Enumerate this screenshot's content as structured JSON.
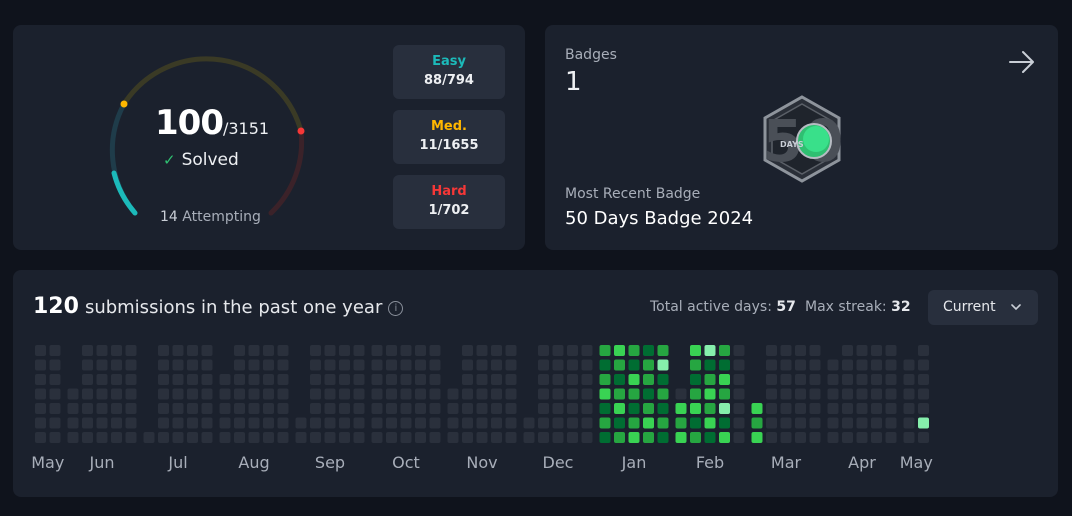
{
  "progress": {
    "solved_count": "100",
    "total_count": "/3151",
    "solved_label": "Solved",
    "attempting_count": "14",
    "attempting_label": "Attempting",
    "easy": {
      "label": "Easy",
      "value": "88/794",
      "color": "#1cbaba"
    },
    "medium": {
      "label": "Med.",
      "value": "11/1655",
      "color": "#ffb700"
    },
    "hard": {
      "label": "Hard",
      "value": "1/702",
      "color": "#f63737"
    }
  },
  "badges": {
    "title": "Badges",
    "count": "1",
    "badge_days_text": "DAYS",
    "badge_number": "50",
    "recent_label": "Most Recent Badge",
    "recent_name": "50 Days Badge 2024"
  },
  "heatmap": {
    "count": "120",
    "title_text": "submissions in the past one year",
    "info_icon": "info-icon",
    "active_days_label": "Total active days:",
    "active_days_value": "57",
    "max_streak_label": "Max streak:",
    "max_streak_value": "32",
    "dropdown_value": "Current",
    "colors": {
      "empty": "#2a303c",
      "level1": "#006d32",
      "level2": "#26a641",
      "level3": "#39d353",
      "level4": "#86efac"
    },
    "months": [
      {
        "label": "May",
        "weeks": [
          [
            0,
            0,
            0,
            0,
            0,
            0,
            0
          ],
          [
            0,
            0,
            0,
            0,
            0,
            0,
            0
          ]
        ],
        "cut_start": 0
      },
      {
        "label": "Jun",
        "weeks": [
          [
            0,
            0,
            0,
            0,
            0,
            0,
            0
          ],
          [
            0,
            0,
            0,
            0,
            0,
            0,
            0
          ],
          [
            0,
            0,
            0,
            0,
            0,
            0,
            0
          ],
          [
            0,
            0,
            0,
            0,
            0,
            0,
            0
          ],
          [
            0,
            0,
            0,
            0,
            0,
            0,
            0
          ]
        ],
        "cut_start": 3
      },
      {
        "label": "Jul",
        "weeks": [
          [
            0,
            0,
            0,
            0,
            0,
            0,
            0
          ],
          [
            0,
            0,
            0,
            0,
            0,
            0,
            0
          ],
          [
            0,
            0,
            0,
            0,
            0,
            0,
            0
          ],
          [
            0,
            0,
            0,
            0,
            0,
            0,
            0
          ],
          [
            0,
            0,
            0,
            0,
            0,
            0,
            0
          ]
        ],
        "cut_start": 6
      },
      {
        "label": "Aug",
        "weeks": [
          [
            0,
            0,
            0,
            0,
            0,
            0,
            0
          ],
          [
            0,
            0,
            0,
            0,
            0,
            0,
            0
          ],
          [
            0,
            0,
            0,
            0,
            0,
            0,
            0
          ],
          [
            0,
            0,
            0,
            0,
            0,
            0,
            0
          ],
          [
            0,
            0,
            0,
            0,
            0,
            0,
            0
          ]
        ],
        "cut_start": 2
      },
      {
        "label": "Sep",
        "weeks": [
          [
            0,
            0,
            0,
            0,
            0,
            0,
            0
          ],
          [
            0,
            0,
            0,
            0,
            0,
            0,
            0
          ],
          [
            0,
            0,
            0,
            0,
            0,
            0,
            0
          ],
          [
            0,
            0,
            0,
            0,
            0,
            0,
            0
          ],
          [
            0,
            0,
            0,
            0,
            0,
            0,
            0
          ]
        ],
        "cut_start": 5
      },
      {
        "label": "Oct",
        "weeks": [
          [
            0,
            0,
            0,
            0,
            0,
            0,
            0
          ],
          [
            0,
            0,
            0,
            0,
            0,
            0,
            0
          ],
          [
            0,
            0,
            0,
            0,
            0,
            0,
            0
          ],
          [
            0,
            0,
            0,
            0,
            0,
            0,
            0
          ],
          [
            0,
            0,
            0,
            0,
            0,
            0,
            0
          ]
        ],
        "cut_start": 0
      },
      {
        "label": "Nov",
        "weeks": [
          [
            0,
            0,
            0,
            0,
            0,
            0,
            0
          ],
          [
            0,
            0,
            0,
            0,
            0,
            0,
            0
          ],
          [
            0,
            0,
            0,
            0,
            0,
            0,
            0
          ],
          [
            0,
            0,
            0,
            0,
            0,
            0,
            0
          ],
          [
            0,
            0,
            0,
            0,
            0,
            0,
            0
          ]
        ],
        "cut_start": 3
      },
      {
        "label": "Dec",
        "weeks": [
          [
            0,
            0,
            0,
            0,
            0,
            0,
            0
          ],
          [
            0,
            0,
            0,
            0,
            0,
            0,
            0
          ],
          [
            0,
            0,
            0,
            0,
            0,
            0,
            0
          ],
          [
            0,
            0,
            0,
            0,
            0,
            0,
            0
          ],
          [
            0,
            0,
            0,
            0,
            0,
            0,
            0
          ]
        ],
        "cut_start": 5
      },
      {
        "label": "Jan",
        "weeks": [
          [
            2,
            1,
            2,
            3,
            1,
            2,
            1
          ],
          [
            3,
            2,
            1,
            2,
            3,
            1,
            2
          ],
          [
            2,
            1,
            3,
            2,
            1,
            2,
            3
          ],
          [
            1,
            2,
            2,
            1,
            2,
            3,
            2
          ],
          [
            2,
            4,
            1,
            2,
            1,
            2,
            1
          ]
        ],
        "cut_start": 0
      },
      {
        "label": "Feb",
        "weeks": [
          [
            0,
            0,
            0,
            0,
            3,
            2,
            3
          ],
          [
            3,
            2,
            1,
            2,
            3,
            1,
            2
          ],
          [
            4,
            1,
            2,
            3,
            2,
            3,
            1
          ],
          [
            2,
            1,
            3,
            2,
            4,
            1,
            3
          ],
          [
            0,
            0,
            0,
            0,
            0,
            0,
            0
          ]
        ],
        "cut_start": 3
      },
      {
        "label": "Mar",
        "weeks": [
          [
            0,
            0,
            0,
            0,
            3,
            2,
            3
          ],
          [
            0,
            0,
            0,
            0,
            0,
            0,
            0
          ],
          [
            0,
            0,
            0,
            0,
            0,
            0,
            0
          ],
          [
            0,
            0,
            0,
            0,
            0,
            0,
            0
          ],
          [
            0,
            0,
            0,
            0,
            0,
            0,
            0
          ]
        ],
        "cut_start": 4
      },
      {
        "label": "Apr",
        "weeks": [
          [
            0,
            0,
            0,
            0,
            0,
            0,
            0
          ],
          [
            0,
            0,
            0,
            0,
            0,
            0,
            0
          ],
          [
            0,
            0,
            0,
            0,
            0,
            0,
            0
          ],
          [
            0,
            0,
            0,
            0,
            0,
            0,
            0
          ],
          [
            0,
            0,
            0,
            0,
            0,
            0,
            0
          ]
        ],
        "cut_start": 1
      },
      {
        "label": "May",
        "weeks": [
          [
            0,
            0,
            0,
            0,
            0,
            0,
            0
          ],
          [
            0,
            0,
            0,
            0,
            0,
            4,
            0
          ]
        ],
        "cut_start": 1
      }
    ]
  }
}
